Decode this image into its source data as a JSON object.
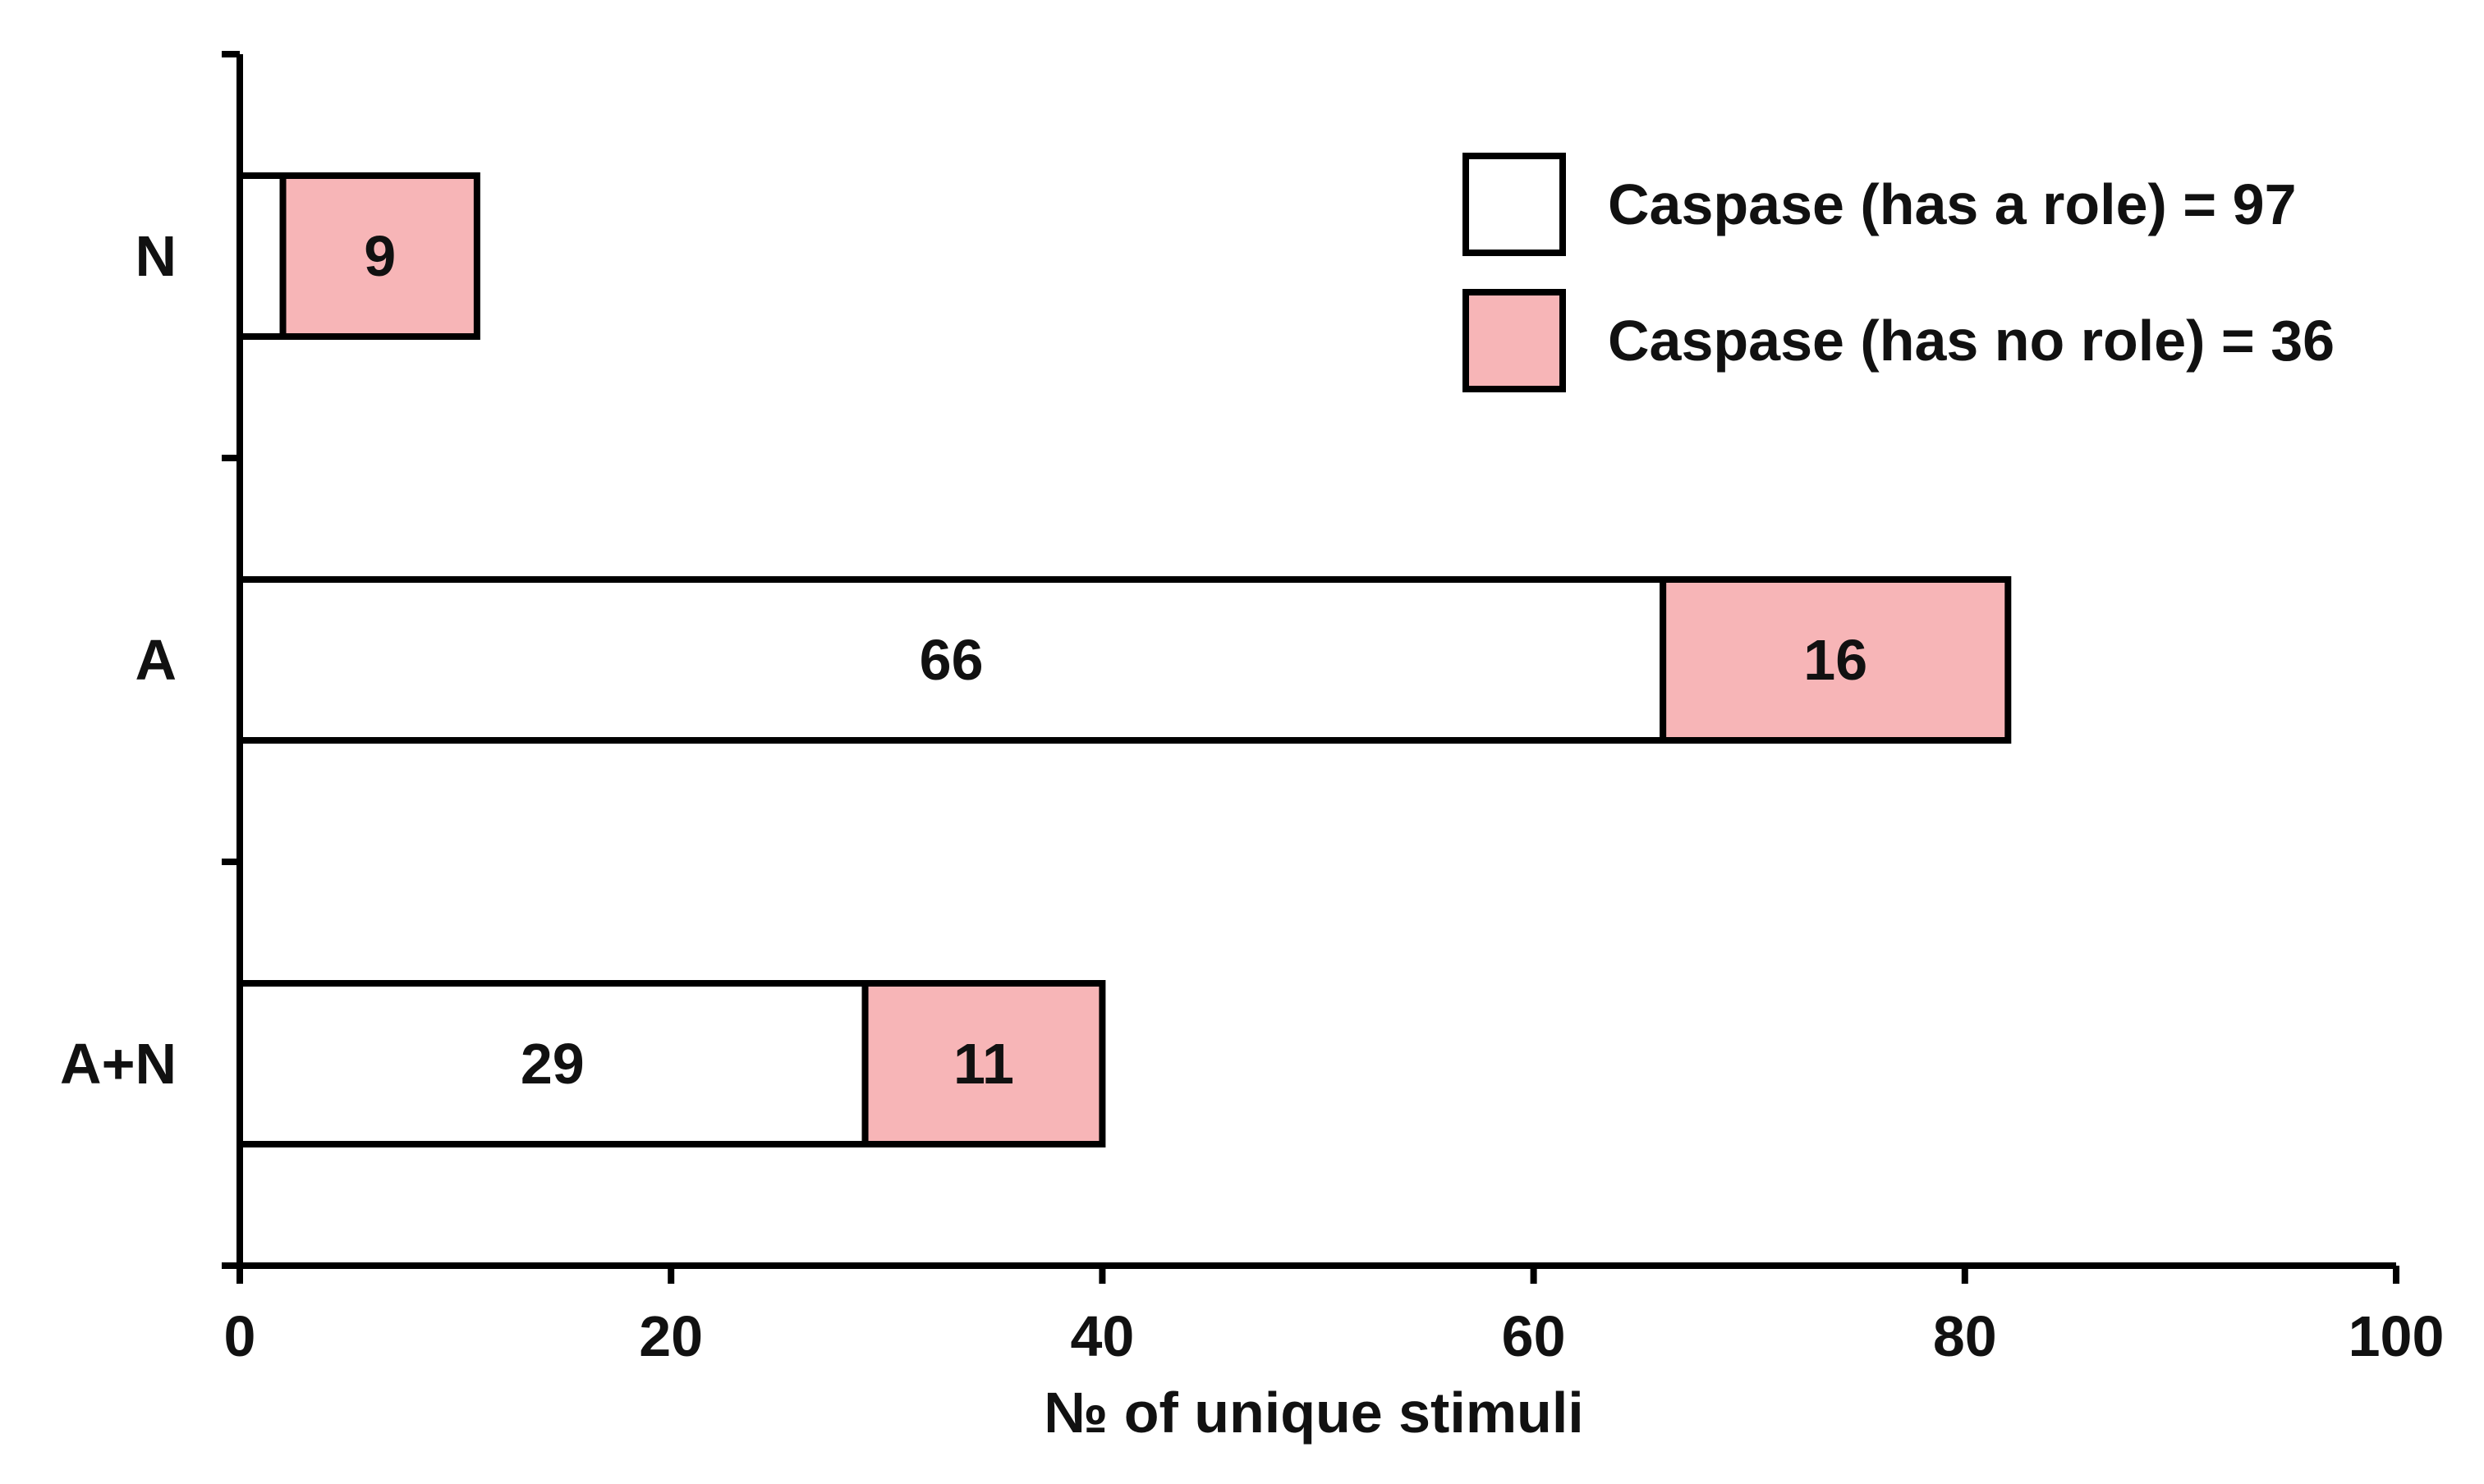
{
  "chart_data": {
    "type": "bar",
    "orientation": "horizontal",
    "stacked": true,
    "categories": [
      "N",
      "A",
      "A+N"
    ],
    "series": [
      {
        "name": "Caspase (has a role) = 97",
        "values": [
          2,
          66,
          29
        ],
        "labels": [
          "",
          "66",
          "29"
        ],
        "color": "#ffffff"
      },
      {
        "name": "Caspase (has no role) = 36",
        "values": [
          9,
          16,
          11
        ],
        "labels": [
          "9",
          "16",
          "11"
        ],
        "color": "#f7b5b7"
      }
    ],
    "xlabel": "№ of unique stimuli",
    "ylabel": "",
    "xlim": [
      0,
      100
    ],
    "xticks": [
      0,
      20,
      40,
      60,
      80,
      100
    ],
    "xtick_labels": [
      "0",
      "20",
      "40",
      "60",
      "80",
      "100"
    ],
    "legend_position": "top-right",
    "grid": false
  }
}
